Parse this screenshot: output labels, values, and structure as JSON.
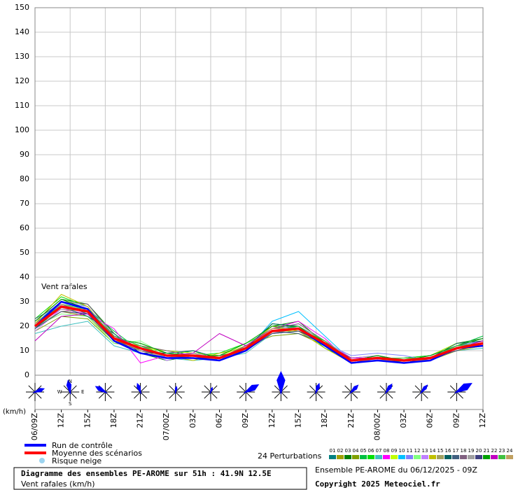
{
  "chart_data": {
    "type": "line",
    "annotation": "Vent rafales",
    "y_unit": "(km/h)",
    "x": [
      0,
      3,
      6,
      9,
      12,
      15,
      18,
      21,
      24,
      27,
      30,
      33,
      36,
      39,
      42,
      45,
      48,
      51
    ],
    "xlim": [
      0,
      51
    ],
    "xticks": [
      {
        "value": 0,
        "label": "06/09Z"
      },
      {
        "value": 3,
        "label": "12Z"
      },
      {
        "value": 6,
        "label": "15Z"
      },
      {
        "value": 9,
        "label": "18Z"
      },
      {
        "value": 12,
        "label": "21Z"
      },
      {
        "value": 15,
        "label": "07/00Z"
      },
      {
        "value": 18,
        "label": "03Z"
      },
      {
        "value": 21,
        "label": "06Z"
      },
      {
        "value": 24,
        "label": "09Z"
      },
      {
        "value": 27,
        "label": "12Z"
      },
      {
        "value": 30,
        "label": "15Z"
      },
      {
        "value": 33,
        "label": "18Z"
      },
      {
        "value": 36,
        "label": "21Z"
      },
      {
        "value": 39,
        "label": "08/00Z"
      },
      {
        "value": 42,
        "label": "03Z"
      },
      {
        "value": 45,
        "label": "06Z"
      },
      {
        "value": 48,
        "label": "09Z"
      },
      {
        "value": 51,
        "label": "12Z"
      }
    ],
    "ylim": [
      0,
      150
    ],
    "yticks": [
      0,
      10,
      20,
      30,
      40,
      50,
      60,
      70,
      80,
      90,
      100,
      110,
      120,
      130,
      140,
      150
    ],
    "grid": true,
    "series": [
      {
        "name": "Run de contrôle",
        "color": "#0000ff",
        "role": "control",
        "values": [
          20,
          30,
          27,
          14,
          9,
          7,
          7,
          6,
          10,
          18,
          19,
          12,
          5,
          6,
          5,
          6,
          11,
          12
        ]
      },
      {
        "name": "Moyenne des scénarios",
        "color": "#ff0000",
        "role": "mean",
        "values": [
          20,
          28,
          26,
          15,
          11,
          8,
          8,
          7,
          11,
          18,
          19,
          13,
          6,
          7,
          6,
          7,
          11,
          13
        ]
      },
      {
        "name": "01",
        "color": "#008080",
        "values": [
          21,
          30,
          27,
          16,
          10,
          7,
          9,
          6,
          12,
          19,
          20,
          12,
          5,
          6,
          6,
          7,
          12,
          14
        ]
      },
      {
        "name": "02",
        "color": "#a0a000",
        "values": [
          19,
          26,
          24,
          14,
          12,
          9,
          7,
          8,
          10,
          17,
          18,
          14,
          7,
          8,
          5,
          6,
          10,
          12
        ]
      },
      {
        "name": "03",
        "color": "#008000",
        "values": [
          22,
          31,
          29,
          17,
          9,
          6,
          8,
          7,
          11,
          20,
          22,
          13,
          6,
          7,
          7,
          8,
          13,
          15
        ]
      },
      {
        "name": "04",
        "color": "#80a000",
        "values": [
          18,
          24,
          23,
          13,
          12,
          10,
          9,
          8,
          12,
          16,
          17,
          12,
          5,
          6,
          6,
          7,
          11,
          12
        ]
      },
      {
        "name": "05",
        "color": "#00c040",
        "values": [
          20,
          29,
          27,
          18,
          10,
          8,
          10,
          6,
          10,
          21,
          20,
          11,
          6,
          8,
          5,
          6,
          12,
          16
        ]
      },
      {
        "name": "06",
        "color": "#00e000",
        "values": [
          23,
          32,
          28,
          15,
          13,
          9,
          8,
          9,
          13,
          18,
          19,
          14,
          7,
          7,
          7,
          8,
          12,
          13
        ]
      },
      {
        "name": "07",
        "color": "#40c0c0",
        "values": [
          17,
          20,
          22,
          12,
          9,
          7,
          6,
          7,
          9,
          17,
          18,
          12,
          6,
          6,
          5,
          7,
          10,
          11
        ]
      },
      {
        "name": "08",
        "color": "#ff00ff",
        "values": [
          20,
          27,
          25,
          19,
          5,
          8,
          7,
          6,
          11,
          19,
          22,
          15,
          5,
          7,
          6,
          6,
          11,
          13
        ]
      },
      {
        "name": "09",
        "color": "#c0ff00",
        "values": [
          21,
          28,
          26,
          14,
          11,
          10,
          9,
          8,
          12,
          18,
          18,
          12,
          7,
          8,
          6,
          8,
          13,
          14
        ]
      },
      {
        "name": "10",
        "color": "#00c0ff",
        "values": [
          19,
          29,
          25,
          16,
          12,
          7,
          8,
          7,
          10,
          22,
          26,
          16,
          6,
          7,
          7,
          7,
          11,
          12
        ]
      },
      {
        "name": "11",
        "color": "#8080ff",
        "values": [
          22,
          30,
          28,
          15,
          10,
          9,
          7,
          6,
          11,
          17,
          20,
          13,
          8,
          9,
          8,
          6,
          12,
          14
        ]
      },
      {
        "name": "12",
        "color": "#80ff80",
        "values": [
          20,
          25,
          24,
          13,
          14,
          8,
          8,
          8,
          13,
          19,
          19,
          12,
          6,
          6,
          5,
          7,
          11,
          13
        ]
      },
      {
        "name": "13",
        "color": "#c080ff",
        "values": [
          18,
          27,
          26,
          16,
          11,
          6,
          9,
          7,
          10,
          18,
          21,
          14,
          7,
          8,
          6,
          8,
          12,
          15
        ]
      },
      {
        "name": "14",
        "color": "#c0c000",
        "values": [
          21,
          33,
          28,
          14,
          12,
          8,
          6,
          9,
          11,
          20,
          18,
          11,
          5,
          7,
          6,
          7,
          10,
          12
        ]
      },
      {
        "name": "15",
        "color": "#a0a060",
        "values": [
          20,
          26,
          27,
          15,
          10,
          7,
          8,
          6,
          12,
          17,
          19,
          13,
          6,
          6,
          7,
          6,
          11,
          13
        ]
      },
      {
        "name": "16",
        "color": "#006060",
        "values": [
          19,
          28,
          24,
          17,
          9,
          9,
          10,
          7,
          11,
          21,
          20,
          12,
          7,
          7,
          5,
          7,
          13,
          14
        ]
      },
      {
        "name": "17",
        "color": "#406080",
        "values": [
          23,
          29,
          25,
          14,
          11,
          8,
          7,
          8,
          10,
          18,
          17,
          13,
          6,
          8,
          6,
          8,
          12,
          13
        ]
      },
      {
        "name": "18",
        "color": "#806080",
        "values": [
          20,
          30,
          29,
          16,
          12,
          10,
          8,
          7,
          12,
          19,
          21,
          14,
          5,
          7,
          7,
          7,
          11,
          14
        ]
      },
      {
        "name": "19",
        "color": "#a0a0a0",
        "values": [
          21,
          27,
          26,
          15,
          11,
          7,
          9,
          6,
          11,
          18,
          19,
          12,
          6,
          6,
          6,
          6,
          12,
          12
        ]
      },
      {
        "name": "20",
        "color": "#404080",
        "values": [
          19,
          26,
          25,
          14,
          10,
          8,
          7,
          7,
          10,
          17,
          18,
          13,
          7,
          7,
          5,
          7,
          10,
          13
        ]
      },
      {
        "name": "21",
        "color": "#00a000",
        "values": [
          22,
          31,
          27,
          15,
          13,
          9,
          8,
          8,
          13,
          20,
          20,
          12,
          6,
          8,
          6,
          8,
          12,
          15
        ]
      },
      {
        "name": "22",
        "color": "#c000c0",
        "values": [
          14,
          24,
          25,
          16,
          11,
          8,
          9,
          17,
          12,
          19,
          19,
          13,
          7,
          7,
          6,
          7,
          11,
          14
        ]
      },
      {
        "name": "23",
        "color": "#40c040",
        "values": [
          20,
          28,
          27,
          16,
          12,
          8,
          8,
          7,
          11,
          18,
          20,
          14,
          6,
          7,
          7,
          7,
          12,
          13
        ]
      },
      {
        "name": "24",
        "color": "#c0a060",
        "values": [
          21,
          29,
          26,
          15,
          10,
          7,
          7,
          6,
          11,
          19,
          19,
          13,
          6,
          6,
          6,
          6,
          11,
          12
        ]
      }
    ],
    "perturbations_label": "24 Perturbations",
    "snow_legend": "Risque neige",
    "wind_roses": {
      "hours": [
        0,
        4,
        8,
        12,
        16,
        20,
        24,
        28,
        32,
        36,
        40,
        44,
        48
      ],
      "directions": [
        70,
        350,
        300,
        340,
        10,
        20,
        60,
        0,
        20,
        45,
        35,
        40,
        60
      ],
      "sizes": [
        15,
        18,
        17,
        14,
        9,
        8,
        22,
        30,
        14,
        15,
        15,
        14,
        26
      ],
      "compass": [
        "N",
        "W",
        "E",
        "S"
      ]
    },
    "footer_title": "Diagramme des ensembles PE-AROME sur 51h : 41.9N 12.5E",
    "footer_subtitle": "Vent rafales (km/h)",
    "run_info": "Ensemble PE-AROME du 06/12/2025 - 09Z",
    "copyright": "Copyright 2025 Meteociel.fr"
  }
}
